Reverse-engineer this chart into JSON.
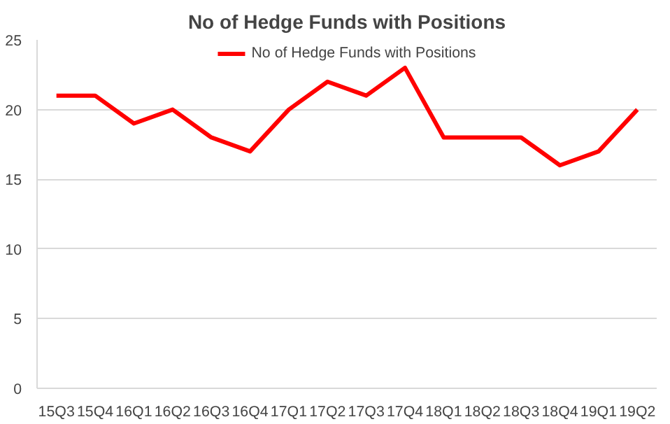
{
  "chart_data": {
    "type": "line",
    "title": "No of Hedge Funds with Positions",
    "categories": [
      "15Q3",
      "15Q4",
      "16Q1",
      "16Q2",
      "16Q3",
      "16Q4",
      "17Q1",
      "17Q2",
      "17Q3",
      "17Q4",
      "18Q1",
      "18Q2",
      "18Q3",
      "18Q4",
      "19Q1",
      "19Q2"
    ],
    "series": [
      {
        "name": "No of Hedge Funds with Positions",
        "color": "#ff0000",
        "values": [
          21,
          21,
          19,
          20,
          18,
          17,
          20,
          22,
          21,
          23,
          18,
          18,
          18,
          16,
          17,
          20
        ]
      }
    ],
    "ylim": [
      0,
      25
    ],
    "yticks": [
      0,
      5,
      10,
      15,
      20,
      25
    ],
    "grid": "y",
    "legend": "top",
    "marker": "none",
    "line_style": "solid"
  }
}
